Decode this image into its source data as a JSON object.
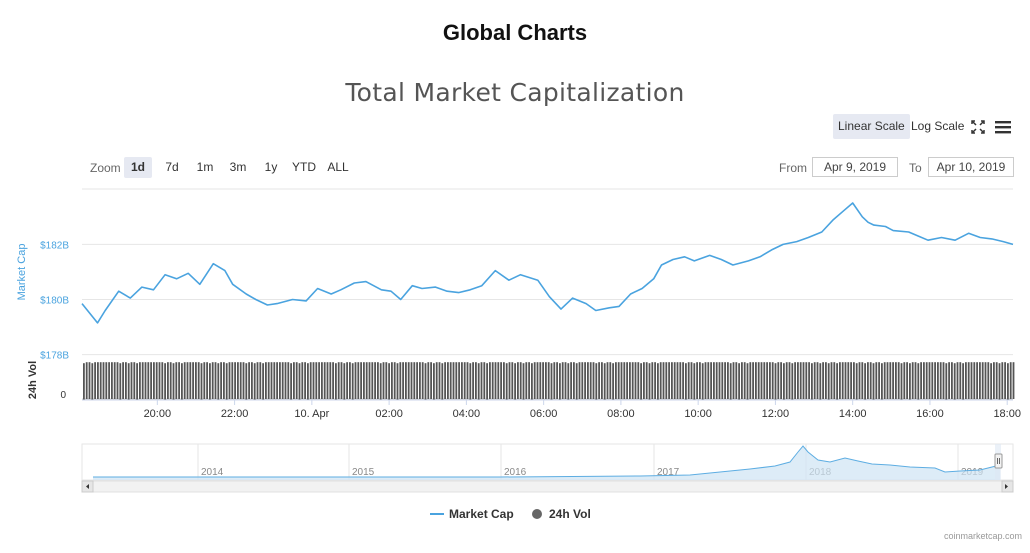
{
  "page_heading": "Global Charts",
  "toolbar": {
    "linear_scale": "Linear Scale",
    "log_scale": "Log Scale",
    "fullscreen_icon": "expand-arrows-icon",
    "menu_icon": "hamburger-menu-icon"
  },
  "zoom": {
    "label": "Zoom",
    "buttons": [
      "1d",
      "7d",
      "1m",
      "3m",
      "1y",
      "YTD",
      "ALL"
    ],
    "selected": "1d"
  },
  "range": {
    "from_label": "From",
    "from_value": "Apr 9, 2019",
    "to_label": "To",
    "to_value": "Apr 10, 2019"
  },
  "legend": {
    "market_cap": "Market Cap",
    "vol": "24h Vol"
  },
  "credit": "coinmarketcap.com",
  "colors": {
    "market_cap": "#4aa3df",
    "volume": "#555555",
    "navigator": "#5dade2",
    "button_active": "#e6e9f2"
  },
  "chart_data": {
    "type": "line",
    "title": "Total Market Capitalization",
    "ylabel": "Market Cap",
    "ylabel_secondary": "24h Vol",
    "y_ticks": [
      "$182B",
      "$180B",
      "$178B"
    ],
    "y_tick_values": [
      182,
      180,
      178
    ],
    "vol_ticks": [
      "0"
    ],
    "ylim": [
      177.95,
      183.9
    ],
    "x_ticks": [
      "20:00",
      "22:00",
      "10. Apr",
      "02:00",
      "04:00",
      "06:00",
      "08:00",
      "10:00",
      "12:00",
      "14:00",
      "16:00",
      "18:00"
    ],
    "x_tick_hours": [
      20,
      22,
      24,
      26,
      28,
      30,
      32,
      34,
      36,
      38,
      40,
      42
    ],
    "xlim_hours": [
      18.05,
      42.15
    ],
    "series": [
      {
        "name": "Market Cap",
        "unit": "billion USD",
        "x_hours": [
          18.05,
          18.45,
          18.65,
          19.0,
          19.3,
          19.6,
          19.9,
          20.2,
          20.5,
          20.8,
          21.1,
          21.45,
          21.75,
          21.95,
          22.3,
          22.55,
          22.85,
          23.1,
          23.5,
          23.85,
          24.15,
          24.5,
          24.75,
          25.1,
          25.4,
          25.8,
          26.05,
          26.3,
          26.6,
          26.85,
          27.2,
          27.5,
          27.8,
          28.1,
          28.4,
          28.75,
          29.1,
          29.4,
          29.85,
          30.15,
          30.45,
          30.75,
          31.1,
          31.35,
          31.7,
          31.95,
          32.25,
          32.55,
          32.85,
          33.05,
          33.35,
          33.65,
          33.9,
          34.3,
          34.6,
          34.9,
          35.3,
          35.6,
          35.9,
          36.2,
          36.55,
          36.85,
          37.2,
          37.5,
          37.75,
          38.0,
          38.25,
          38.4,
          38.55,
          38.85,
          39.05,
          39.45,
          39.7,
          39.95,
          40.3,
          40.65,
          41.0,
          41.3,
          41.6,
          41.9,
          42.15
        ],
        "values": [
          179.85,
          179.15,
          179.6,
          180.3,
          180.05,
          180.45,
          180.35,
          180.9,
          180.75,
          180.95,
          180.55,
          181.3,
          181.05,
          180.55,
          180.2,
          180.0,
          179.8,
          179.85,
          180.0,
          179.95,
          180.4,
          180.2,
          180.35,
          180.6,
          180.65,
          180.35,
          180.3,
          180.0,
          180.5,
          180.4,
          180.45,
          180.3,
          180.25,
          180.35,
          180.5,
          181.05,
          180.7,
          180.9,
          180.7,
          180.1,
          179.65,
          180.05,
          179.85,
          179.6,
          179.7,
          179.75,
          180.2,
          180.4,
          180.75,
          181.25,
          181.45,
          181.55,
          181.4,
          181.6,
          181.45,
          181.25,
          181.4,
          181.55,
          181.8,
          182.0,
          182.1,
          182.25,
          182.45,
          182.9,
          183.2,
          183.5,
          183.0,
          182.8,
          182.7,
          182.65,
          182.5,
          182.45,
          182.3,
          182.15,
          182.25,
          182.15,
          182.4,
          182.25,
          182.2,
          182.1,
          182.0
        ]
      },
      {
        "name": "24h Vol",
        "note": "volume bars, roughly constant across the day",
        "relative_level": 0.92
      }
    ],
    "navigator": {
      "x_ticks": [
        "2014",
        "2015",
        "2016",
        "2017",
        "2018",
        "2019"
      ]
    },
    "grid": true,
    "legend_position": "bottom-center"
  }
}
